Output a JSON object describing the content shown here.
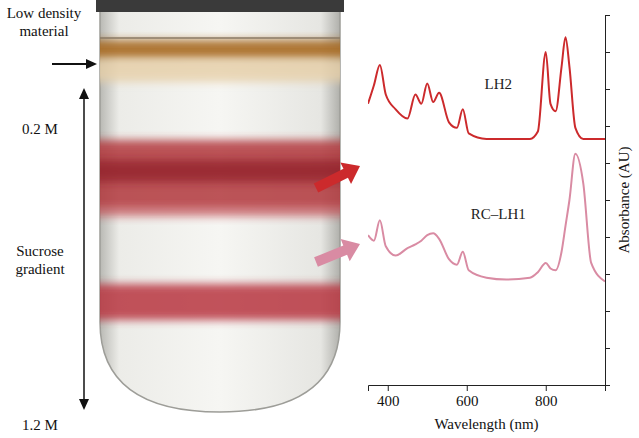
{
  "chart_data": {
    "type": "line",
    "x_label": "Wavelength (nm)",
    "y_label": "Absorbance (AU)",
    "x": [
      350,
      365,
      380,
      395,
      420,
      450,
      470,
      485,
      500,
      515,
      530,
      555,
      575,
      590,
      605,
      650,
      700,
      760,
      780,
      800,
      812,
      825,
      840,
      850,
      860,
      875,
      895,
      915,
      950
    ],
    "series": [
      {
        "name": "LH2",
        "color": "#cc2a2c",
        "values": [
          1.52,
          1.62,
          1.73,
          1.57,
          1.49,
          1.44,
          1.57,
          1.52,
          1.63,
          1.53,
          1.58,
          1.42,
          1.39,
          1.49,
          1.36,
          1.33,
          1.33,
          1.33,
          1.37,
          1.8,
          1.52,
          1.48,
          1.72,
          1.88,
          1.72,
          1.39,
          1.33,
          1.33,
          1.33
        ]
      },
      {
        "name": "RC–LH1",
        "color": "#d98ba3",
        "values": [
          0.81,
          0.78,
          0.89,
          0.75,
          0.7,
          0.74,
          0.76,
          0.78,
          0.81,
          0.82,
          0.79,
          0.68,
          0.65,
          0.72,
          0.62,
          0.58,
          0.57,
          0.58,
          0.61,
          0.66,
          0.63,
          0.62,
          0.72,
          0.86,
          1.0,
          1.25,
          1.09,
          0.66,
          0.56
        ]
      }
    ],
    "xlim": [
      350,
      950
    ],
    "xticks": [
      400,
      600,
      800
    ],
    "ylim": [
      0,
      2
    ],
    "yticks": [
      0,
      0.2,
      0.4,
      0.6,
      0.8,
      1,
      1.2,
      1.4,
      1.6,
      1.8,
      2
    ],
    "tick_labels": "x",
    "annotations": [
      "Low density material",
      "0.2 M",
      "Sucrose gradient",
      "1.2 M"
    ]
  }
}
